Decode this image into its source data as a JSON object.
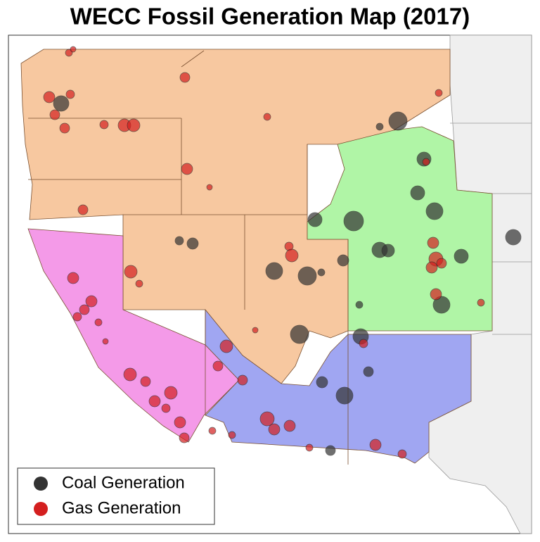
{
  "title": "WECC Fossil Generation Map (2017)",
  "legend": [
    {
      "label": "Coal Generation",
      "color": "#333333"
    },
    {
      "label": "Gas Generation",
      "color": "#d41f1f"
    }
  ]
}
